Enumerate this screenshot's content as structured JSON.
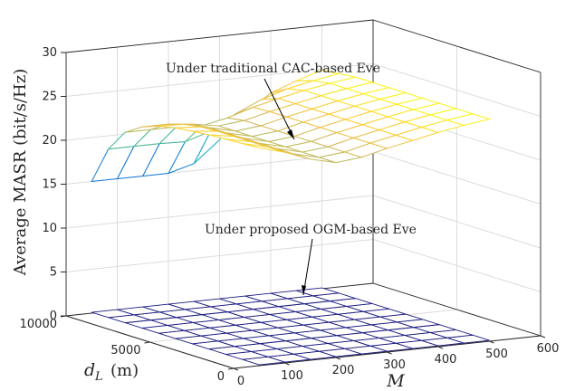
{
  "chart_data": {
    "type": "surface",
    "axes": {
      "x": {
        "label": "M",
        "ticks": [
          0,
          100,
          200,
          300,
          400,
          500,
          600
        ],
        "lim": [
          0,
          600
        ]
      },
      "y": {
        "label_main": "d",
        "label_sub": "L",
        "label_unit": "(m)",
        "ticks": [
          0,
          5000,
          10000
        ],
        "lim": [
          0,
          10000
        ]
      },
      "z": {
        "label": "Average MASR (bit/s/Hz)",
        "ticks": [
          0,
          5,
          10,
          15,
          20,
          25,
          30
        ],
        "lim": [
          0,
          30
        ]
      }
    },
    "grid": true,
    "M": [
      50,
      100,
      150,
      200,
      250,
      300,
      350,
      400,
      450,
      500
    ],
    "dL": [
      0,
      1000,
      2000,
      3000,
      4000,
      5000,
      6000,
      7000,
      8000,
      9000,
      10000
    ],
    "series": [
      {
        "annotation": "Under traditional CAC-based Eve",
        "colormap": "parula",
        "z_rows": [
          [
            24.8,
            24.0,
            22.9,
            22.2,
            22.5,
            23.2,
            23.8,
            24.4,
            24.9,
            25.3
          ],
          [
            24.7,
            24.0,
            22.9,
            22.2,
            22.5,
            23.2,
            23.8,
            24.4,
            24.9,
            25.3
          ],
          [
            24.6,
            24.0,
            22.9,
            22.2,
            22.5,
            23.2,
            23.8,
            24.4,
            24.9,
            25.3
          ],
          [
            24.5,
            24.0,
            22.9,
            22.2,
            22.5,
            23.2,
            23.8,
            24.4,
            24.9,
            25.3
          ],
          [
            24.3,
            24.0,
            22.9,
            22.2,
            22.5,
            23.2,
            23.8,
            24.4,
            24.9,
            25.3
          ],
          [
            24.1,
            23.9,
            22.9,
            22.2,
            22.5,
            23.2,
            23.8,
            24.4,
            24.9,
            25.3
          ],
          [
            23.7,
            23.6,
            22.9,
            22.2,
            22.5,
            23.2,
            23.8,
            24.4,
            24.9,
            25.3
          ],
          [
            23.0,
            23.0,
            22.7,
            22.2,
            22.5,
            23.2,
            23.8,
            24.4,
            24.9,
            25.3
          ],
          [
            21.8,
            21.8,
            21.8,
            21.6,
            22.2,
            23.1,
            23.8,
            24.4,
            24.9,
            25.3
          ],
          [
            19.3,
            19.3,
            19.3,
            19.2,
            20.1,
            21.8,
            23.1,
            24.0,
            24.6,
            25.1
          ],
          [
            15.0,
            15.0,
            15.0,
            15.0,
            15.8,
            18.2,
            21.0,
            22.9,
            24.0,
            24.9
          ]
        ]
      },
      {
        "annotation": "Under proposed OGM-based Eve",
        "color": "#1a1a80",
        "z_constant": 0.1
      }
    ]
  }
}
